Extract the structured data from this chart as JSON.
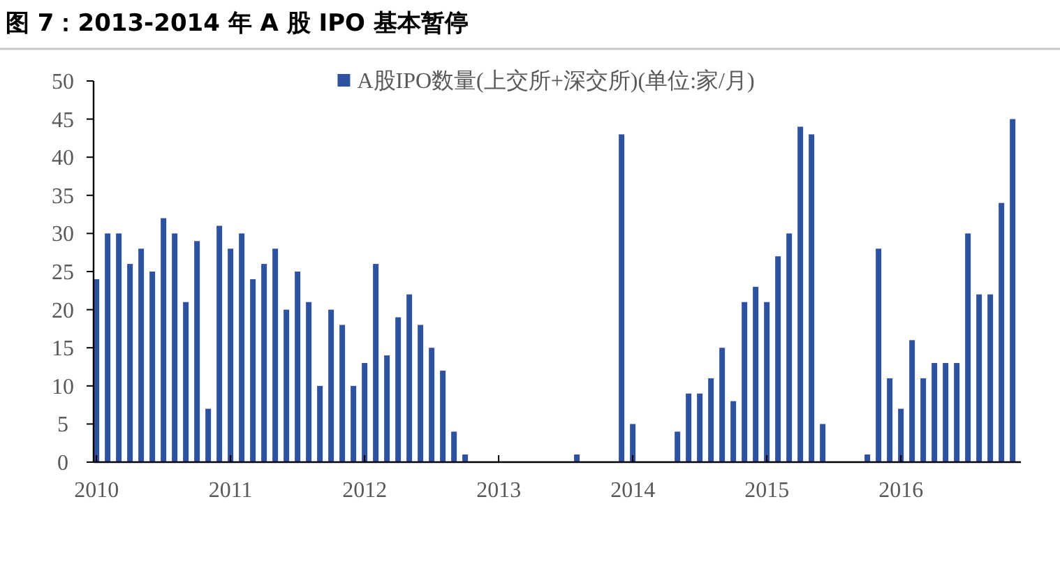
{
  "chart_data": {
    "type": "bar",
    "title": "图 7：2013-2014 年 A 股 IPO 基本暂停",
    "x": [
      "2010-01",
      "2010-02",
      "2010-03",
      "2010-04",
      "2010-05",
      "2010-06",
      "2010-07",
      "2010-08",
      "2010-09",
      "2010-10",
      "2010-11",
      "2010-12",
      "2011-01",
      "2011-02",
      "2011-03",
      "2011-04",
      "2011-05",
      "2011-06",
      "2011-07",
      "2011-08",
      "2011-09",
      "2011-10",
      "2011-11",
      "2011-12",
      "2012-01",
      "2012-02",
      "2012-03",
      "2012-04",
      "2012-05",
      "2012-06",
      "2012-07",
      "2012-08",
      "2012-09",
      "2012-10",
      "2012-11",
      "2012-12",
      "2013-01",
      "2013-02",
      "2013-03",
      "2013-04",
      "2013-05",
      "2013-06",
      "2013-07",
      "2013-08",
      "2013-09",
      "2013-10",
      "2013-11",
      "2013-12",
      "2014-01",
      "2014-02",
      "2014-03",
      "2014-04",
      "2014-05",
      "2014-06",
      "2014-07",
      "2014-08",
      "2014-09",
      "2014-10",
      "2014-11",
      "2014-12",
      "2015-01",
      "2015-02",
      "2015-03",
      "2015-04",
      "2015-05",
      "2015-06",
      "2015-07",
      "2015-08",
      "2015-09",
      "2015-10",
      "2015-11",
      "2015-12",
      "2016-01",
      "2016-02",
      "2016-03",
      "2016-04",
      "2016-05",
      "2016-06",
      "2016-07",
      "2016-08",
      "2016-09",
      "2016-10",
      "2016-11"
    ],
    "series": [
      {
        "name": "A股IPO数量(上交所+深交所)(单位:家/月)",
        "color": "#2f52a0",
        "values": [
          24,
          30,
          30,
          26,
          28,
          25,
          32,
          30,
          21,
          29,
          7,
          31,
          28,
          30,
          24,
          26,
          28,
          20,
          25,
          21,
          10,
          20,
          18,
          10,
          13,
          26,
          14,
          19,
          22,
          18,
          15,
          12,
          4,
          1,
          0,
          0,
          0,
          0,
          0,
          0,
          0,
          0,
          0,
          1,
          0,
          0,
          0,
          43,
          5,
          0,
          0,
          0,
          4,
          9,
          9,
          11,
          15,
          8,
          21,
          23,
          21,
          27,
          30,
          44,
          43,
          5,
          0,
          0,
          0,
          1,
          28,
          11,
          7,
          16,
          11,
          13,
          13,
          13,
          30,
          22,
          22,
          34,
          45
        ]
      }
    ],
    "xlim": [
      "2009-12-24",
      "2016-11-24"
    ],
    "xticks": [
      "2010",
      "2011",
      "2012",
      "2013",
      "2014",
      "2015",
      "2016"
    ],
    "ylim": [
      0,
      50
    ],
    "yticks": [
      0,
      5,
      10,
      15,
      20,
      25,
      30,
      35,
      40,
      45,
      50
    ],
    "grid": false,
    "legend": "top"
  }
}
